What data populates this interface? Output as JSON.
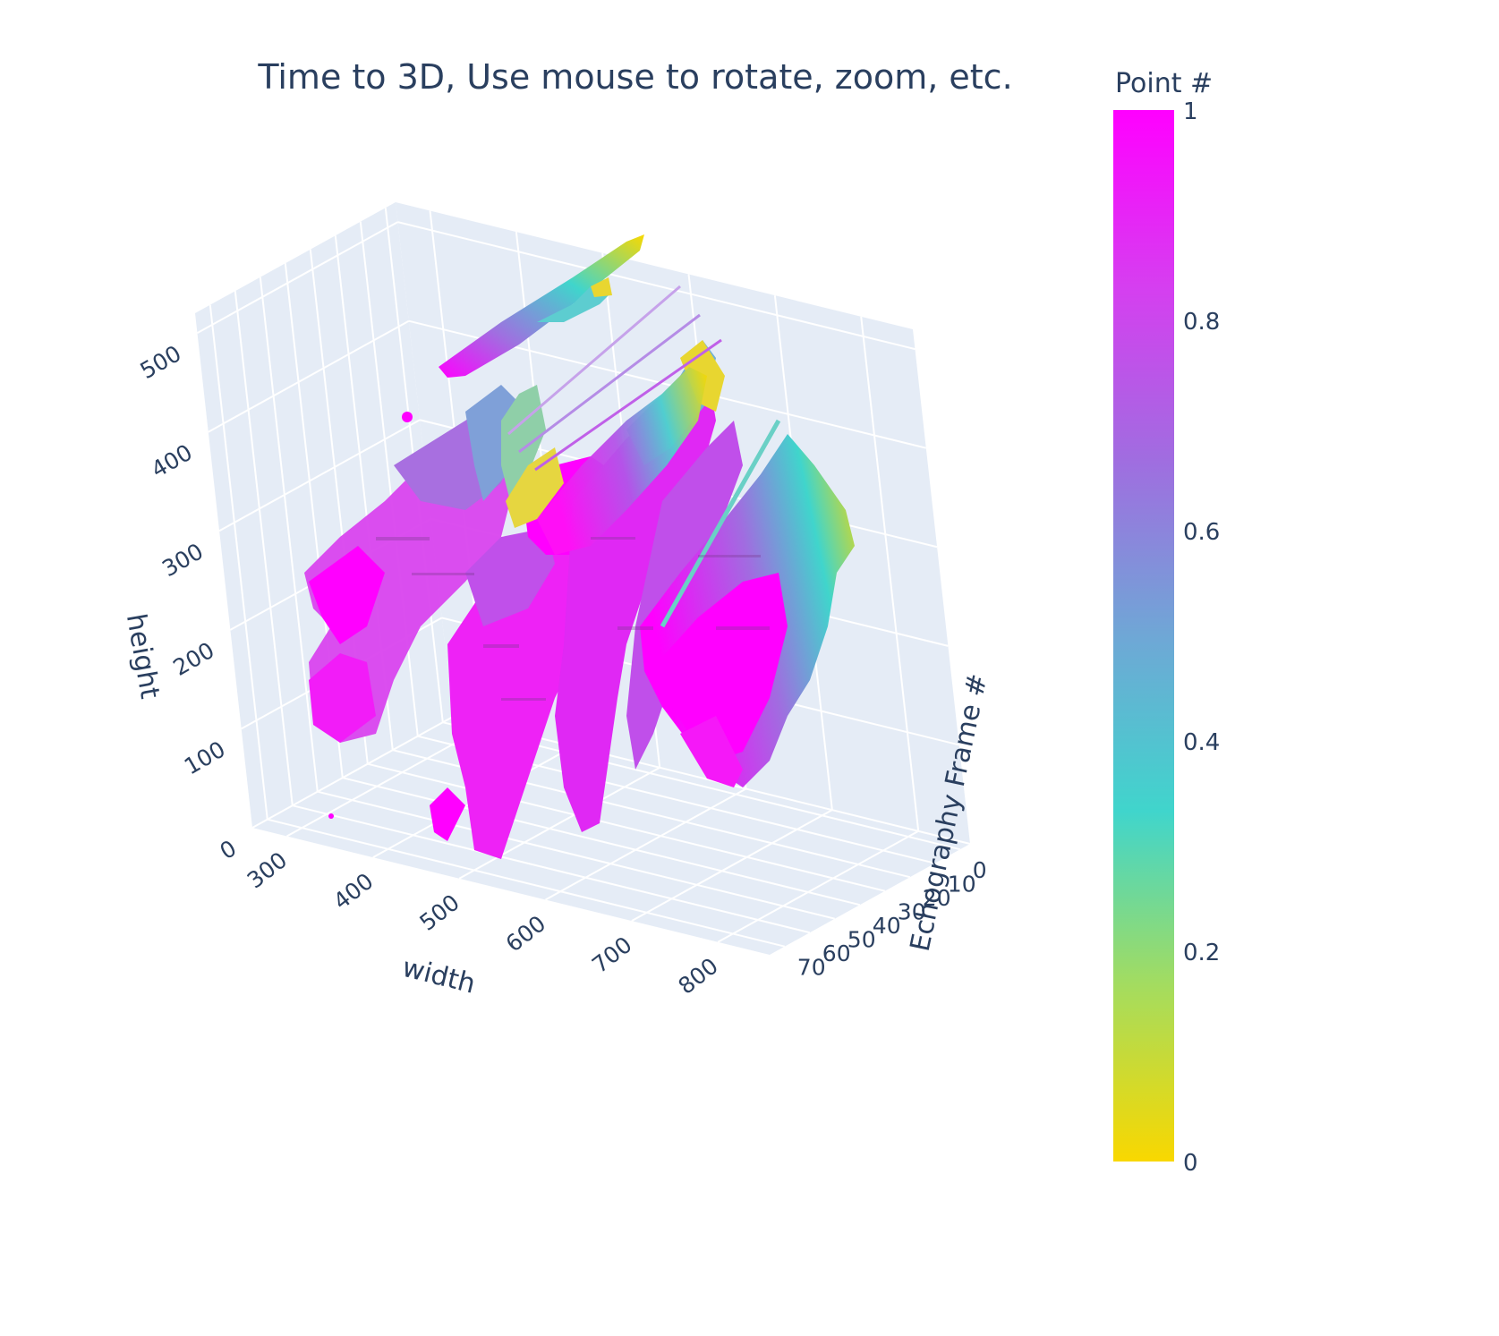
{
  "chart_data": {
    "type": "scatter3d",
    "title": "Time to 3D, Use mouse to rotate, zoom, etc.",
    "axes": {
      "x": {
        "title": "width",
        "ticks": [
          300,
          400,
          500,
          600,
          700,
          800
        ],
        "range": [
          260,
          860
        ]
      },
      "y": {
        "title": "Echography Frame #",
        "ticks": [
          0,
          10,
          20,
          30,
          40,
          50,
          60,
          70
        ],
        "range": [
          -4,
          76
        ]
      },
      "z": {
        "title": "height",
        "ticks": [
          0,
          100,
          200,
          300,
          400,
          500
        ],
        "range": [
          0,
          520
        ]
      }
    },
    "colorbar": {
      "title": "Point #",
      "ticks": [
        0,
        0.2,
        0.4,
        0.6,
        0.8,
        1
      ],
      "range": [
        0,
        1
      ],
      "colorscale": [
        "#f9d800",
        "#a4dc5f",
        "#40d5cc",
        "#6fa7d6",
        "#a06de0",
        "#d63ef0",
        "#ff00ff"
      ]
    },
    "plot_background": "#e5ecf6",
    "grid_color": "#ffffff"
  }
}
